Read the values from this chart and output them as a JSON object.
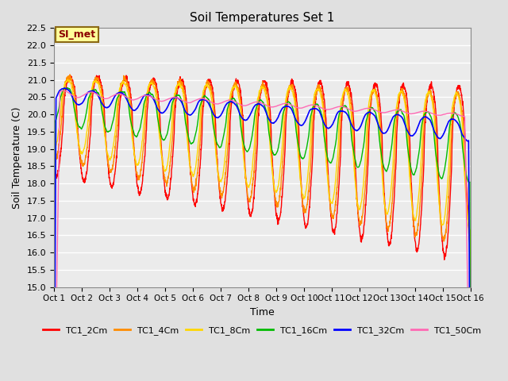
{
  "title": "Soil Temperatures Set 1",
  "xlabel": "Time",
  "ylabel": "Soil Temperature (C)",
  "ylim": [
    15.0,
    22.5
  ],
  "yticks": [
    15.0,
    15.5,
    16.0,
    16.5,
    17.0,
    17.5,
    18.0,
    18.5,
    19.0,
    19.5,
    20.0,
    20.5,
    21.0,
    21.5,
    22.0,
    22.5
  ],
  "xtick_labels": [
    "Oct 1",
    "Oct 2",
    "Oct 3",
    "Oct 4",
    "Oct 5",
    "Oct 6",
    "Oct 7",
    "Oct 8",
    "Oct 9",
    "Oct 10",
    "Oct 11",
    "Oct 12",
    "Oct 13",
    "Oct 14",
    "Oct 15",
    "Oct 16"
  ],
  "annotation_text": "SI_met",
  "annotation_color": "#8B0000",
  "annotation_bg": "#FFFF99",
  "annotation_border": "#8B6914",
  "series_colors": [
    "#FF0000",
    "#FF8C00",
    "#FFD700",
    "#00BB00",
    "#0000FF",
    "#FF69B4"
  ],
  "series_labels": [
    "TC1_2Cm",
    "TC1_4Cm",
    "TC1_8Cm",
    "TC1_16Cm",
    "TC1_32Cm",
    "TC1_50Cm"
  ],
  "bg_color": "#E0E0E0",
  "plot_bg": "#EBEBEB",
  "grid_color": "#FFFFFF",
  "n_points": 2160,
  "n_days": 15
}
